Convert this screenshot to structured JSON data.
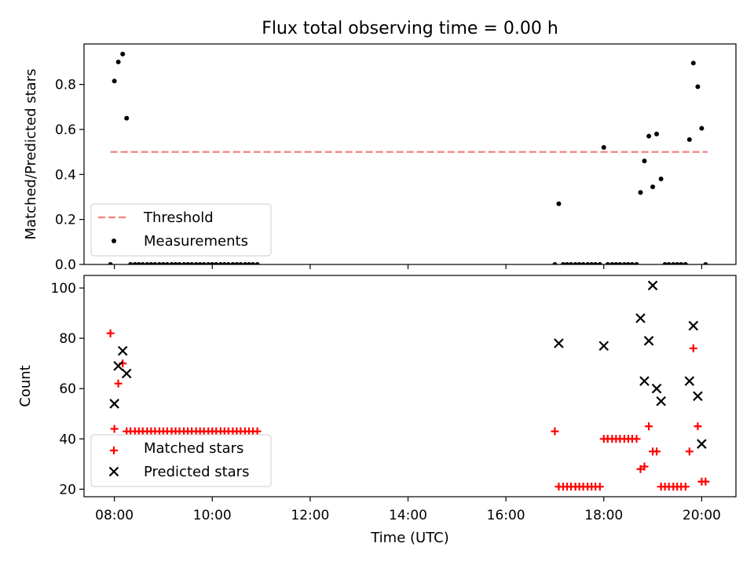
{
  "figure": {
    "title": "Flux total observing time = 0.00 h",
    "xlabel": "Time (UTC)",
    "xticks": [
      "08:00",
      "10:00",
      "12:00",
      "14:00",
      "16:00",
      "18:00",
      "20:00"
    ]
  },
  "colors": {
    "threshold": "#f08080",
    "measurements": "#000000",
    "matched": "#ff0000",
    "predicted": "#000000"
  },
  "chart_data": [
    {
      "type": "scatter",
      "ylabel": "Matched/Predicted stars",
      "xlim": [
        7.38,
        20.7
      ],
      "ylim": [
        0,
        0.98
      ],
      "yticks": [
        "0.0",
        "0.2",
        "0.4",
        "0.6",
        "0.8"
      ],
      "legend_position": "lower-left",
      "threshold": {
        "name": "Threshold",
        "y": 0.5,
        "x_range": [
          7.92,
          20.12
        ]
      },
      "series": [
        {
          "name": "Measurements",
          "x": [
            7.92,
            8.0,
            8.08,
            8.17,
            8.25,
            8.33,
            8.42,
            8.5,
            8.58,
            8.67,
            8.75,
            8.83,
            8.92,
            9.0,
            9.08,
            9.17,
            9.25,
            9.33,
            9.42,
            9.5,
            9.58,
            9.67,
            9.75,
            9.83,
            9.92,
            10.0,
            10.08,
            10.17,
            10.25,
            10.33,
            10.42,
            10.5,
            10.58,
            10.67,
            10.75,
            10.83,
            10.92,
            17.0,
            17.08,
            17.17,
            17.25,
            17.33,
            17.42,
            17.5,
            17.58,
            17.67,
            17.75,
            17.83,
            17.92,
            18.0,
            18.08,
            18.17,
            18.25,
            18.33,
            18.42,
            18.5,
            18.58,
            18.67,
            18.75,
            18.83,
            18.92,
            19.0,
            19.08,
            19.17,
            19.25,
            19.33,
            19.42,
            19.5,
            19.58,
            19.67,
            19.75,
            19.83,
            19.92,
            20.0,
            20.08
          ],
          "y": [
            0.0,
            0.815,
            0.9,
            0.935,
            0.65,
            0.0,
            0.0,
            0.0,
            0.0,
            0.0,
            0.0,
            0.0,
            0.0,
            0.0,
            0.0,
            0.0,
            0.0,
            0.0,
            0.0,
            0.0,
            0.0,
            0.0,
            0.0,
            0.0,
            0.0,
            0.0,
            0.0,
            0.0,
            0.0,
            0.0,
            0.0,
            0.0,
            0.0,
            0.0,
            0.0,
            0.0,
            0.0,
            0.0,
            0.27,
            0.0,
            0.0,
            0.0,
            0.0,
            0.0,
            0.0,
            0.0,
            0.0,
            0.0,
            0.0,
            0.52,
            0.0,
            0.0,
            0.0,
            0.0,
            0.0,
            0.0,
            0.0,
            0.0,
            0.32,
            0.46,
            0.57,
            0.345,
            0.58,
            0.38,
            0.0,
            0.0,
            0.0,
            0.0,
            0.0,
            0.0,
            0.555,
            0.895,
            0.79,
            0.605,
            0.0
          ]
        }
      ]
    },
    {
      "type": "scatter",
      "ylabel": "Count",
      "xlim": [
        7.38,
        20.7
      ],
      "ylim": [
        17,
        105
      ],
      "yticks": [
        "20",
        "40",
        "60",
        "80",
        "100"
      ],
      "legend_position": "lower-left",
      "series": [
        {
          "name": "Matched stars",
          "x": [
            7.92,
            8.0,
            8.08,
            8.17,
            8.25,
            8.33,
            8.42,
            8.5,
            8.58,
            8.67,
            8.75,
            8.83,
            8.92,
            9.0,
            9.08,
            9.17,
            9.25,
            9.33,
            9.42,
            9.5,
            9.58,
            9.67,
            9.75,
            9.83,
            9.92,
            10.0,
            10.08,
            10.17,
            10.25,
            10.33,
            10.42,
            10.5,
            10.58,
            10.67,
            10.75,
            10.83,
            10.92,
            17.0,
            17.08,
            17.17,
            17.25,
            17.33,
            17.42,
            17.5,
            17.58,
            17.67,
            17.75,
            17.83,
            17.92,
            18.0,
            18.08,
            18.17,
            18.25,
            18.33,
            18.42,
            18.5,
            18.58,
            18.67,
            18.75,
            18.83,
            18.92,
            19.0,
            19.08,
            19.17,
            19.25,
            19.33,
            19.42,
            19.5,
            19.58,
            19.67,
            19.75,
            19.83,
            19.92,
            20.0,
            20.08
          ],
          "y": [
            82,
            44,
            62,
            70,
            43,
            43,
            43,
            43,
            43,
            43,
            43,
            43,
            43,
            43,
            43,
            43,
            43,
            43,
            43,
            43,
            43,
            43,
            43,
            43,
            43,
            43,
            43,
            43,
            43,
            43,
            43,
            43,
            43,
            43,
            43,
            43,
            43,
            43,
            21,
            21,
            21,
            21,
            21,
            21,
            21,
            21,
            21,
            21,
            21,
            40,
            40,
            40,
            40,
            40,
            40,
            40,
            40,
            40,
            28,
            29,
            45,
            35,
            35,
            21,
            21,
            21,
            21,
            21,
            21,
            21,
            35,
            76,
            45,
            23,
            23
          ]
        },
        {
          "name": "Predicted stars",
          "x": [
            8.0,
            8.08,
            8.17,
            8.25,
            17.08,
            18.0,
            18.75,
            18.83,
            18.92,
            19.0,
            19.08,
            19.17,
            19.75,
            19.83,
            19.92,
            20.0
          ],
          "y": [
            54,
            69,
            75,
            66,
            78,
            77,
            88,
            63,
            79,
            101,
            60,
            55,
            63,
            85,
            57,
            38
          ]
        }
      ]
    }
  ]
}
